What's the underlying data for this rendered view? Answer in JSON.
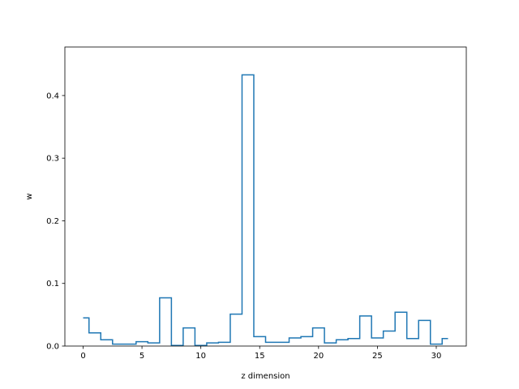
{
  "chart_data": {
    "type": "line",
    "drawstyle": "steps-mid",
    "title": "",
    "xlabel": "z dimension",
    "ylabel": "w",
    "xlim": [
      -1.55,
      32.55
    ],
    "ylim": [
      0,
      0.4775
    ],
    "xticks": [
      0,
      5,
      10,
      15,
      20,
      25,
      30
    ],
    "yticks": [
      0.0,
      0.1,
      0.2,
      0.3,
      0.4
    ],
    "xtick_labels": [
      "0",
      "5",
      "10",
      "15",
      "20",
      "25",
      "30"
    ],
    "ytick_labels": [
      "0.0",
      "0.1",
      "0.2",
      "0.3",
      "0.4"
    ],
    "grid": false,
    "legend": "none",
    "series": [
      {
        "color": "#1f77b4",
        "x": [
          0,
          1,
          2,
          3,
          4,
          5,
          6,
          7,
          8,
          9,
          10,
          11,
          12,
          13,
          14,
          15,
          16,
          17,
          18,
          19,
          20,
          21,
          22,
          23,
          24,
          25,
          26,
          27,
          28,
          29,
          30,
          31
        ],
        "y": [
          0.045,
          0.021,
          0.01,
          0.003,
          0.003,
          0.007,
          0.005,
          0.077,
          0.001,
          0.029,
          0.001,
          0.005,
          0.006,
          0.051,
          0.433,
          0.015,
          0.006,
          0.006,
          0.013,
          0.015,
          0.029,
          0.005,
          0.01,
          0.012,
          0.048,
          0.013,
          0.024,
          0.054,
          0.012,
          0.041,
          0.003,
          0.012
        ]
      }
    ]
  }
}
